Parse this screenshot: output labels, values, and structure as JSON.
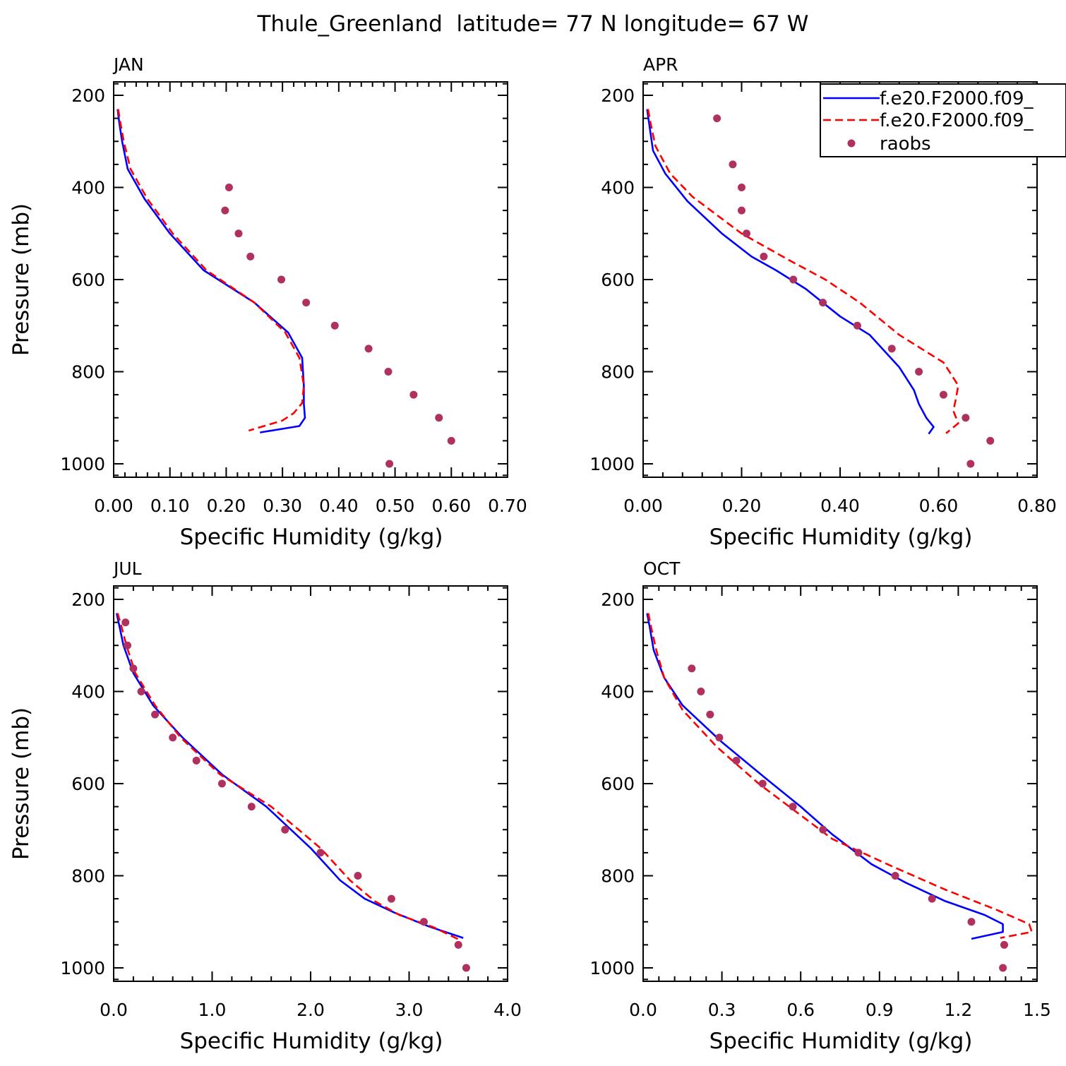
{
  "figure_title": "Thule_Greenland  latitude= 77 N longitude= 67 W",
  "legend": {
    "entries": [
      {
        "label": "f.e20.F2000.f09_",
        "style": "solid",
        "color": "#0000ff"
      },
      {
        "label": "f.e20.F2000.f09_",
        "style": "dashed",
        "color": "#ff0000"
      },
      {
        "label": "raobs",
        "style": "marker",
        "color": "#b03060"
      }
    ]
  },
  "colors": {
    "model_solid": "#0000ff",
    "model_dashed": "#ff0000",
    "raobs": "#b03060"
  },
  "chart_data": [
    {
      "type": "line",
      "title": "JAN",
      "xlabel": "Specific Humidity (g/kg)",
      "ylabel": "Pressure (mb)",
      "xlim": [
        0,
        0.7
      ],
      "ylim": [
        1000,
        200
      ],
      "x_ticks": [
        "0.00",
        "0.10",
        "0.20",
        "0.30",
        "0.40",
        "0.50",
        "0.60",
        "0.70"
      ],
      "y_ticks": [
        "200",
        "400",
        "600",
        "800",
        "1000"
      ],
      "series": [
        {
          "style": "solid",
          "points": [
            [
              0.007,
              230
            ],
            [
              0.01,
              260
            ],
            [
              0.015,
              300
            ],
            [
              0.025,
              360
            ],
            [
              0.055,
              425
            ],
            [
              0.1,
              500
            ],
            [
              0.16,
              580
            ],
            [
              0.25,
              650
            ],
            [
              0.31,
              715
            ],
            [
              0.335,
              770
            ],
            [
              0.338,
              830
            ],
            [
              0.338,
              870
            ],
            [
              0.34,
              900
            ],
            [
              0.33,
              918
            ],
            [
              0.26,
              932
            ]
          ]
        },
        {
          "style": "dashed",
          "points": [
            [
              0.008,
              230
            ],
            [
              0.012,
              260
            ],
            [
              0.018,
              300
            ],
            [
              0.03,
              360
            ],
            [
              0.06,
              425
            ],
            [
              0.105,
              500
            ],
            [
              0.165,
              580
            ],
            [
              0.25,
              650
            ],
            [
              0.305,
              715
            ],
            [
              0.33,
              770
            ],
            [
              0.338,
              830
            ],
            [
              0.335,
              868
            ],
            [
              0.32,
              890
            ],
            [
              0.3,
              906
            ],
            [
              0.24,
              928
            ]
          ]
        },
        {
          "style": "marker",
          "points": [
            [
              0.205,
              400
            ],
            [
              0.198,
              450
            ],
            [
              0.222,
              500
            ],
            [
              0.243,
              550
            ],
            [
              0.298,
              600
            ],
            [
              0.342,
              650
            ],
            [
              0.393,
              700
            ],
            [
              0.453,
              750
            ],
            [
              0.488,
              800
            ],
            [
              0.533,
              850
            ],
            [
              0.578,
              900
            ],
            [
              0.6,
              950
            ],
            [
              0.49,
              1000
            ]
          ]
        }
      ]
    },
    {
      "type": "line",
      "title": "APR",
      "xlabel": "Specific Humidity (g/kg)",
      "ylabel": "",
      "xlim": [
        0,
        0.8
      ],
      "ylim": [
        1000,
        200
      ],
      "x_ticks": [
        "0.00",
        "0.20",
        "0.40",
        "0.60",
        "0.80"
      ],
      "y_ticks": [
        "200",
        "400",
        "600",
        "800",
        "1000"
      ],
      "series": [
        {
          "style": "solid",
          "points": [
            [
              0.008,
              230
            ],
            [
              0.012,
              260
            ],
            [
              0.02,
              320
            ],
            [
              0.045,
              370
            ],
            [
              0.09,
              430
            ],
            [
              0.16,
              500
            ],
            [
              0.22,
              550
            ],
            [
              0.27,
              580
            ],
            [
              0.33,
              620
            ],
            [
              0.4,
              680
            ],
            [
              0.46,
              720
            ],
            [
              0.52,
              790
            ],
            [
              0.55,
              840
            ],
            [
              0.56,
              870
            ],
            [
              0.575,
              900
            ],
            [
              0.59,
              920
            ],
            [
              0.58,
              935
            ]
          ]
        },
        {
          "style": "dashed",
          "points": [
            [
              0.01,
              230
            ],
            [
              0.015,
              260
            ],
            [
              0.025,
              310
            ],
            [
              0.055,
              370
            ],
            [
              0.1,
              420
            ],
            [
              0.2,
              500
            ],
            [
              0.3,
              560
            ],
            [
              0.37,
              600
            ],
            [
              0.44,
              650
            ],
            [
              0.52,
              720
            ],
            [
              0.61,
              780
            ],
            [
              0.64,
              830
            ],
            [
              0.635,
              860
            ],
            [
              0.63,
              885
            ],
            [
              0.64,
              912
            ],
            [
              0.615,
              934
            ]
          ]
        },
        {
          "style": "marker",
          "points": [
            [
              0.15,
              250
            ],
            [
              0.182,
              350
            ],
            [
              0.2,
              400
            ],
            [
              0.2,
              450
            ],
            [
              0.21,
              500
            ],
            [
              0.245,
              550
            ],
            [
              0.305,
              600
            ],
            [
              0.365,
              650
            ],
            [
              0.435,
              700
            ],
            [
              0.505,
              750
            ],
            [
              0.56,
              800
            ],
            [
              0.61,
              850
            ],
            [
              0.655,
              900
            ],
            [
              0.705,
              950
            ],
            [
              0.665,
              1000
            ]
          ]
        }
      ]
    },
    {
      "type": "line",
      "title": "JUL",
      "xlabel": "Specific Humidity (g/kg)",
      "ylabel": "Pressure (mb)",
      "xlim": [
        0,
        4.0
      ],
      "ylim": [
        1000,
        200
      ],
      "x_ticks": [
        "0.0",
        "1.0",
        "2.0",
        "3.0",
        "4.0"
      ],
      "y_ticks": [
        "200",
        "400",
        "600",
        "800",
        "1000"
      ],
      "series": [
        {
          "style": "solid",
          "points": [
            [
              0.03,
              230
            ],
            [
              0.06,
              260
            ],
            [
              0.1,
              300
            ],
            [
              0.2,
              360
            ],
            [
              0.4,
              430
            ],
            [
              0.7,
              500
            ],
            [
              1.1,
              580
            ],
            [
              1.55,
              650
            ],
            [
              2.0,
              740
            ],
            [
              2.3,
              810
            ],
            [
              2.55,
              850
            ],
            [
              2.85,
              880
            ],
            [
              3.2,
              910
            ],
            [
              3.55,
              935
            ]
          ]
        },
        {
          "style": "dashed",
          "points": [
            [
              0.04,
              230
            ],
            [
              0.08,
              260
            ],
            [
              0.13,
              300
            ],
            [
              0.22,
              360
            ],
            [
              0.42,
              430
            ],
            [
              0.68,
              500
            ],
            [
              1.08,
              580
            ],
            [
              1.6,
              650
            ],
            [
              2.1,
              740
            ],
            [
              2.4,
              810
            ],
            [
              2.65,
              855
            ],
            [
              2.9,
              885
            ],
            [
              3.25,
              912
            ],
            [
              3.5,
              938
            ]
          ]
        },
        {
          "style": "marker",
          "points": [
            [
              0.12,
              250
            ],
            [
              0.14,
              300
            ],
            [
              0.2,
              350
            ],
            [
              0.28,
              400
            ],
            [
              0.42,
              450
            ],
            [
              0.6,
              500
            ],
            [
              0.84,
              550
            ],
            [
              1.1,
              600
            ],
            [
              1.4,
              650
            ],
            [
              1.74,
              700
            ],
            [
              2.1,
              750
            ],
            [
              2.48,
              800
            ],
            [
              2.82,
              850
            ],
            [
              3.15,
              900
            ],
            [
              3.5,
              950
            ],
            [
              3.58,
              1000
            ]
          ]
        }
      ]
    },
    {
      "type": "line",
      "title": "OCT",
      "xlabel": "Specific Humidity (g/kg)",
      "ylabel": "",
      "xlim": [
        0,
        1.5
      ],
      "ylim": [
        1000,
        200
      ],
      "x_ticks": [
        "0.0",
        "0.3",
        "0.6",
        "0.9",
        "1.2",
        "1.5"
      ],
      "y_ticks": [
        "200",
        "400",
        "600",
        "800",
        "1000"
      ],
      "series": [
        {
          "style": "solid",
          "points": [
            [
              0.015,
              230
            ],
            [
              0.025,
              260
            ],
            [
              0.04,
              310
            ],
            [
              0.08,
              370
            ],
            [
              0.15,
              430
            ],
            [
              0.3,
              510
            ],
            [
              0.47,
              590
            ],
            [
              0.6,
              650
            ],
            [
              0.72,
              710
            ],
            [
              0.87,
              775
            ],
            [
              1.0,
              815
            ],
            [
              1.15,
              855
            ],
            [
              1.3,
              885
            ],
            [
              1.37,
              905
            ],
            [
              1.37,
              922
            ],
            [
              1.25,
              937
            ]
          ]
        },
        {
          "style": "dashed",
          "points": [
            [
              0.02,
              230
            ],
            [
              0.03,
              260
            ],
            [
              0.05,
              310
            ],
            [
              0.08,
              370
            ],
            [
              0.15,
              440
            ],
            [
              0.28,
              520
            ],
            [
              0.44,
              600
            ],
            [
              0.58,
              660
            ],
            [
              0.72,
              720
            ],
            [
              0.95,
              780
            ],
            [
              1.15,
              830
            ],
            [
              1.35,
              875
            ],
            [
              1.47,
              905
            ],
            [
              1.48,
              922
            ],
            [
              1.36,
              935
            ]
          ]
        },
        {
          "style": "marker",
          "points": [
            [
              0.185,
              350
            ],
            [
              0.22,
              400
            ],
            [
              0.255,
              450
            ],
            [
              0.29,
              500
            ],
            [
              0.355,
              550
            ],
            [
              0.455,
              600
            ],
            [
              0.57,
              650
            ],
            [
              0.685,
              700
            ],
            [
              0.82,
              750
            ],
            [
              0.96,
              800
            ],
            [
              1.1,
              850
            ],
            [
              1.25,
              900
            ],
            [
              1.375,
              950
            ],
            [
              1.37,
              1000
            ]
          ]
        }
      ]
    }
  ]
}
